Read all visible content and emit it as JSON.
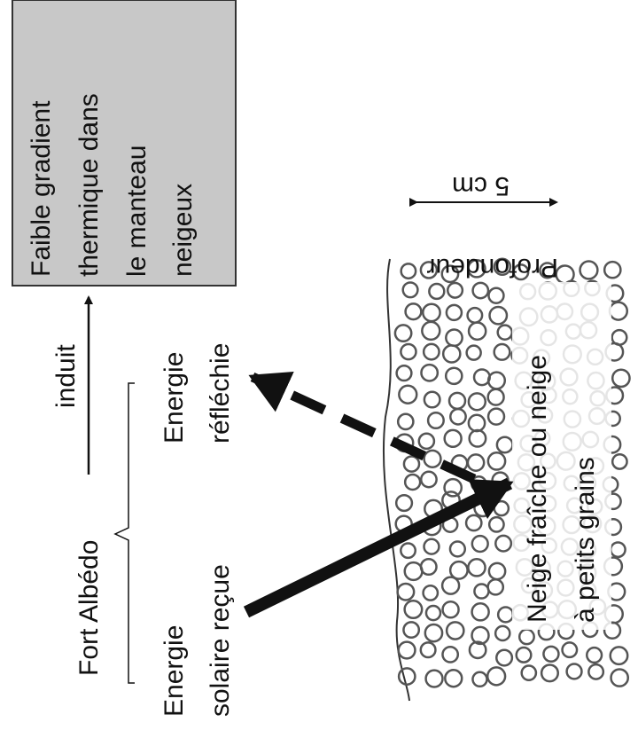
{
  "box": {
    "lines": [
      "Faible gradient",
      "thermique dans",
      "le manteau",
      "neigeux"
    ]
  },
  "link": "induit",
  "cause": "Fort Albédo",
  "reflected": [
    "Energie",
    "réfléchie"
  ],
  "received": [
    "Energie",
    "solaire reçue"
  ],
  "depth": {
    "label": "Profondeur",
    "scale": "5 cm"
  },
  "snow": [
    "Neige fraîche ou neige",
    "à petits grains"
  ]
}
